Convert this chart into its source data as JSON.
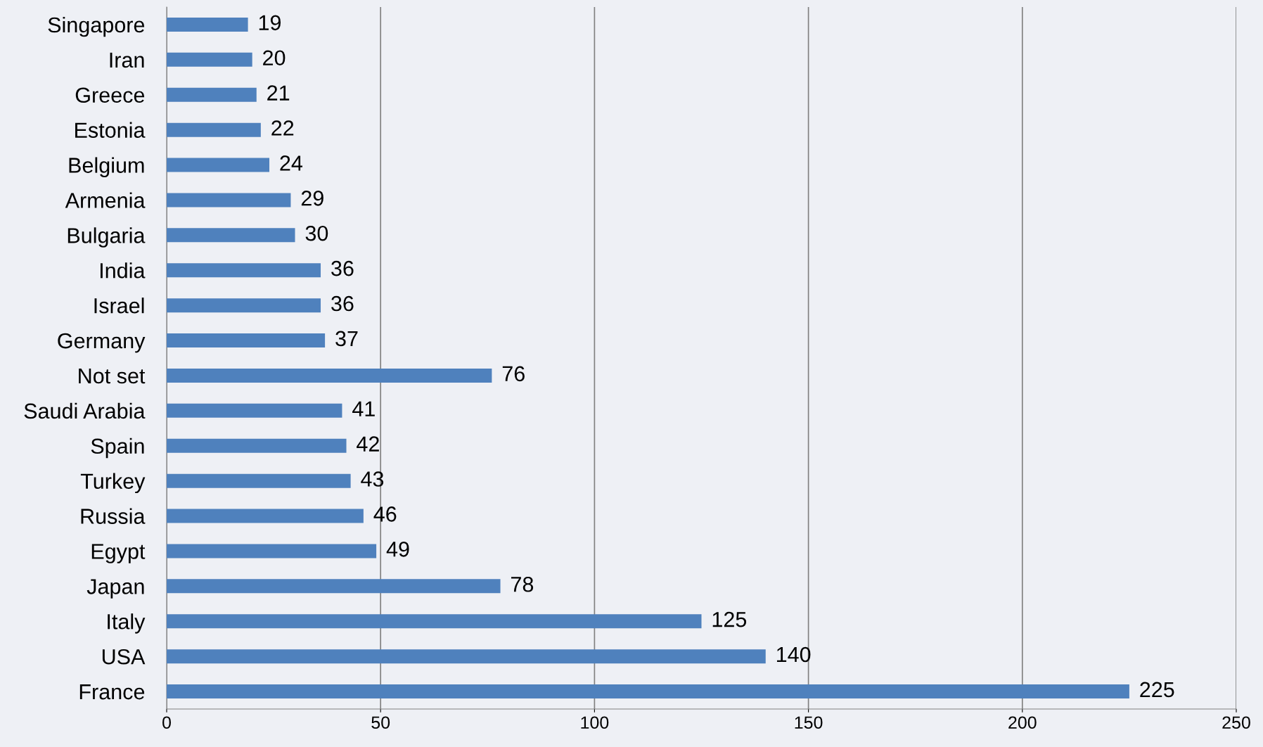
{
  "chart_data": {
    "type": "bar",
    "orientation": "horizontal",
    "categories": [
      "Singapore",
      "Iran",
      "Greece",
      "Estonia",
      "Belgium",
      "Armenia",
      "Bulgaria",
      "India",
      "Israel",
      "Germany",
      "Not set",
      "Saudi Arabia",
      "Spain",
      "Turkey",
      "Russia",
      "Egypt",
      "Japan",
      "Italy",
      "USA",
      "France"
    ],
    "values": [
      19,
      20,
      21,
      22,
      24,
      29,
      30,
      36,
      36,
      37,
      76,
      41,
      42,
      43,
      46,
      49,
      78,
      125,
      140,
      225
    ],
    "color": "#4f81bd",
    "xlim": [
      0,
      250
    ],
    "xticks": [
      0,
      50,
      100,
      150,
      200,
      250
    ],
    "grid": "x",
    "data_labels": true
  }
}
